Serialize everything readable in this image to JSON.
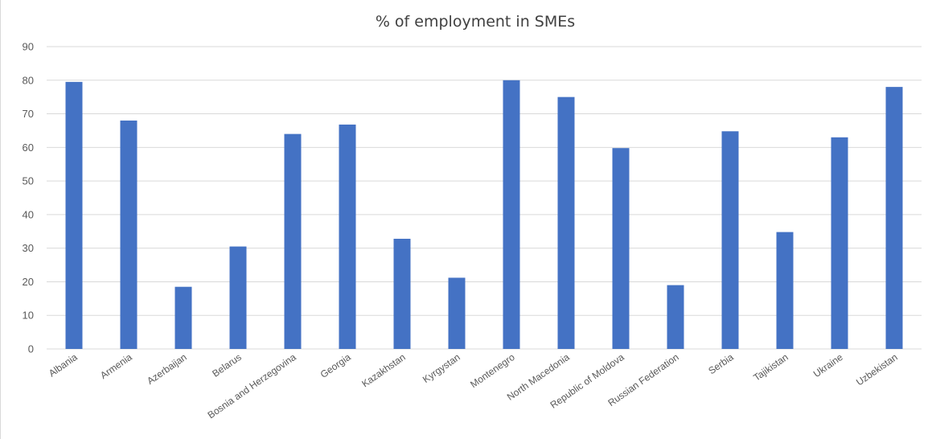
{
  "chart_data": {
    "type": "bar",
    "title": "% of employment in SMEs",
    "xlabel": "",
    "ylabel": "",
    "categories": [
      "Albania",
      "Armenia",
      "Azerbaijan",
      "Belarus",
      "Bosnia and Herzegovina",
      "Georgia",
      "Kazakhstan",
      "Kyrgystan",
      "Montenegro",
      "North Macedonia",
      "Republic of Moldova",
      "Russian Federation",
      "Serbia",
      "Tajikistan",
      "Ukraine",
      "Uzbekistan"
    ],
    "values": [
      79.5,
      68,
      18.5,
      30.5,
      64,
      66.8,
      32.8,
      21.2,
      80,
      75,
      59.8,
      19,
      64.8,
      34.8,
      63,
      78
    ],
    "ylim": [
      0,
      90
    ],
    "yticks": [
      0,
      10,
      20,
      30,
      40,
      50,
      60,
      70,
      80,
      90
    ],
    "grid": true,
    "legend": "none",
    "bar_color": "#4472C4",
    "grid_color": "#d9d9d9"
  }
}
